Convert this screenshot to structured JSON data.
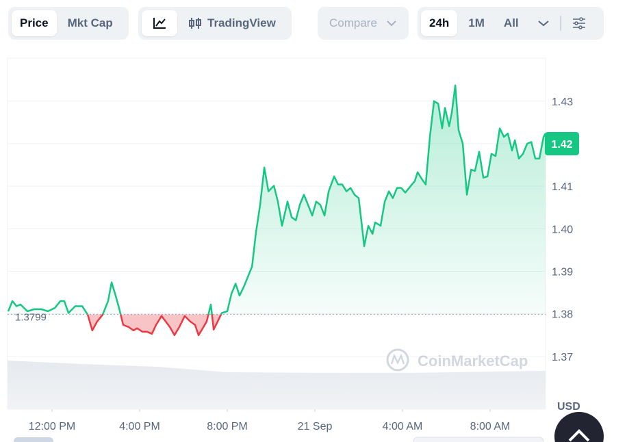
{
  "tabs": [
    "Price",
    "Mkt Cap"
  ],
  "view_tab": "TradingView",
  "compare": "Compare",
  "ranges": [
    "24h",
    "1M",
    "All"
  ],
  "chart_data": {
    "type": "line",
    "x": [
      10.0,
      10.19,
      10.38,
      10.56,
      10.88,
      11.19,
      11.5,
      11.81,
      12.13,
      12.38,
      12.56,
      12.75,
      13.06,
      13.38,
      13.63,
      13.84,
      14.06,
      14.31,
      14.56,
      14.72,
      14.88,
      15.06,
      15.25,
      15.5,
      15.72,
      15.88,
      16.13,
      16.34,
      16.56,
      16.75,
      17.0,
      17.19,
      17.38,
      17.59,
      17.81,
      18.06,
      18.31,
      18.53,
      18.69,
      18.88,
      19.06,
      19.25,
      19.38,
      19.56,
      19.75,
      20.0,
      20.19,
      20.38,
      20.56,
      20.75,
      20.94,
      21.13,
      21.31,
      21.5,
      21.69,
      21.88,
      22.13,
      22.31,
      22.5,
      22.75,
      22.94,
      23.13,
      23.31,
      23.5,
      23.69,
      23.88,
      24.06,
      24.25,
      24.44,
      24.63,
      24.88,
      25.06,
      25.25,
      25.44,
      25.63,
      25.81,
      26.0,
      26.13,
      26.25,
      26.44,
      26.63,
      26.75,
      27.0,
      27.19,
      27.38,
      27.56,
      27.75,
      27.94,
      28.13,
      28.38,
      28.56,
      28.69,
      28.88,
      29.06,
      29.25,
      29.44,
      29.63,
      29.81,
      29.94,
      30.13,
      30.25,
      30.41,
      30.56,
      30.75,
      30.94,
      31.13,
      31.31,
      31.5,
      31.69,
      31.88,
      32.06,
      32.25,
      32.44,
      32.63,
      32.81,
      33.0,
      33.13,
      33.31,
      33.5,
      33.69,
      33.88,
      34.06,
      34.25,
      34.44,
      34.53
    ],
    "series": [
      {
        "name": "Price",
        "color": "#16c784",
        "values": [
          1.3806,
          1.383,
          1.3818,
          1.3822,
          1.3806,
          1.3811,
          1.3811,
          1.3806,
          1.3814,
          1.383,
          1.383,
          1.3802,
          1.3818,
          1.3818,
          1.3798,
          1.3761,
          1.3782,
          1.3798,
          1.383,
          1.3874,
          1.3847,
          1.3814,
          1.3774,
          1.3769,
          1.3761,
          1.3766,
          1.3758,
          1.3758,
          1.3753,
          1.3774,
          1.3795,
          1.3782,
          1.3769,
          1.375,
          1.3769,
          1.3795,
          1.3782,
          1.3774,
          1.375,
          1.3766,
          1.3782,
          1.3822,
          1.3763,
          1.3782,
          1.3802,
          1.3806,
          1.3847,
          1.3871,
          1.3843,
          1.3863,
          1.3887,
          1.3911,
          1.3991,
          1.4056,
          1.4144,
          1.4088,
          1.4101,
          1.4064,
          1.4007,
          1.4064,
          1.4027,
          1.402,
          1.4056,
          1.408,
          1.4056,
          1.4031,
          1.4064,
          1.4056,
          1.4031,
          1.4088,
          1.4123,
          1.4104,
          1.4104,
          1.4088,
          1.4096,
          1.408,
          1.4072,
          1.4015,
          1.3959,
          1.4007,
          1.3988,
          1.4015,
          1.4007,
          1.4064,
          1.4088,
          1.4072,
          1.4096,
          1.4096,
          1.4085,
          1.4101,
          1.4112,
          1.4133,
          1.4117,
          1.4104,
          1.4216,
          1.43,
          1.4294,
          1.4236,
          1.4284,
          1.4241,
          1.4273,
          1.4337,
          1.4232,
          1.42,
          1.408,
          1.4139,
          1.4136,
          1.4181,
          1.412,
          1.4123,
          1.4176,
          1.4171,
          1.4236,
          1.4216,
          1.4224,
          1.4184,
          1.4208,
          1.4165,
          1.4176,
          1.42,
          1.4204,
          1.4165,
          1.4165,
          1.4216,
          1.4224
        ]
      }
    ],
    "below_color": "#ea3943",
    "baseline": 1.3799,
    "current_price": 1.42,
    "xlim": [
      10,
      34.53
    ],
    "ylim": [
      1.3576,
      1.4401
    ],
    "xticks": [
      {
        "value": 12,
        "label": "12:00 PM"
      },
      {
        "value": 16,
        "label": "4:00 PM"
      },
      {
        "value": 20,
        "label": "8:00 PM"
      },
      {
        "value": 24,
        "label": "21 Sep"
      },
      {
        "value": 28,
        "label": "4:00 AM"
      },
      {
        "value": 32,
        "label": "8:00 AM"
      }
    ],
    "yticks": [
      1.37,
      1.38,
      1.39,
      1.4,
      1.41,
      1.42,
      1.43
    ],
    "ytick_labels": [
      "1.37",
      "1.38",
      "1.39",
      "1.40",
      "1.41",
      "1.42",
      "1.43"
    ],
    "grid": true,
    "currency": "USD",
    "watermark": "CoinMarketCap"
  }
}
